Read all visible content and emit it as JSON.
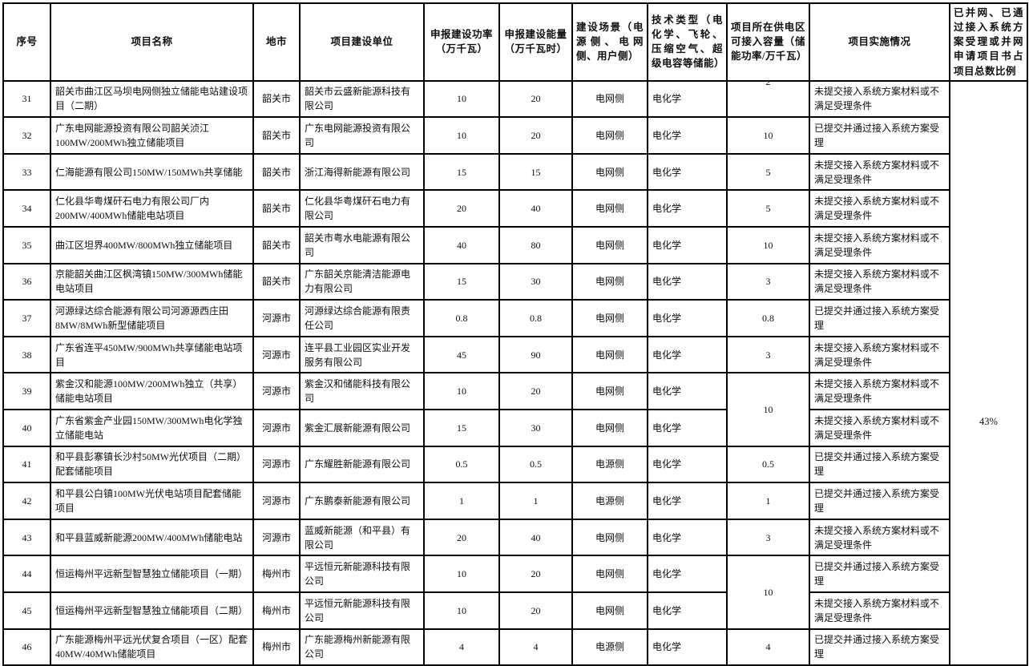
{
  "table": {
    "headers": [
      "序号",
      "项目名称",
      "地市",
      "项目建设单位",
      "申报建设功率（万千瓦）",
      "申报建设能量（万千瓦时）",
      "建设场景（电源侧、电网侧、用户侧）",
      "技术类型（电化学、飞轮、压缩空气、超级电容等储能）",
      "项目所在供电区可接入容量（储能功率/万千瓦）",
      "项目实施情况",
      "已并网、已通过接入系统方案受理或并网申请项目书占项目总数比例"
    ],
    "summary_ratio": "43%",
    "carryover_capacity_fragment": "2",
    "status_accepted": "已提交并通过接入系统方案受理",
    "status_not_submitted": "未提交接入系统方案材料或不满足受理条件",
    "rows": [
      {
        "no": "31",
        "name": "韶关市曲江区马坝电网侧独立储能电站建设项目（二期）",
        "city": "韶关市",
        "company": "韶关市云盛新能源科技有限公司",
        "power": "10",
        "energy": "20",
        "scenario": "电网侧",
        "tech": "电化学",
        "capacity": "",
        "capacity_partial": true,
        "status": "未提交接入系统方案材料或不满足受理条件"
      },
      {
        "no": "32",
        "name": "广东电网能源投资有限公司韶关浈江100MW/200MWh独立储能项目",
        "city": "韶关市",
        "company": "广东电网能源投资有限公司",
        "power": "10",
        "energy": "20",
        "scenario": "电网侧",
        "tech": "电化学",
        "capacity": "10",
        "status": "已提交并通过接入系统方案受理"
      },
      {
        "no": "33",
        "name": "仁海能源有限公司150MW/150MWh共享储能",
        "city": "韶关市",
        "company": "浙江海得新能源有限公司",
        "power": "15",
        "energy": "15",
        "scenario": "电网侧",
        "tech": "电化学",
        "capacity": "5",
        "status": "未提交接入系统方案材料或不满足受理条件"
      },
      {
        "no": "34",
        "name": "仁化县华粤煤矸石电力有限公司厂内200MW/400MWh储能电站项目",
        "city": "韶关市",
        "company": "仁化县华粤煤矸石电力有限公司",
        "power": "20",
        "energy": "40",
        "scenario": "电网侧",
        "tech": "电化学",
        "capacity": "5",
        "status": "未提交接入系统方案材料或不满足受理条件"
      },
      {
        "no": "35",
        "name": "曲江区坦界400MW/800MWh独立储能项目",
        "city": "韶关市",
        "company": "韶关市粤水电能源有限公司",
        "power": "40",
        "energy": "80",
        "scenario": "电网侧",
        "tech": "电化学",
        "capacity": "10",
        "status": "未提交接入系统方案材料或不满足受理条件"
      },
      {
        "no": "36",
        "name": "京能韶关曲江区枫湾镇150MW/300MWh储能电站项目",
        "city": "韶关市",
        "company": "广东韶关京能清洁能源电力有限公司",
        "power": "15",
        "energy": "30",
        "scenario": "电网侧",
        "tech": "电化学",
        "capacity": "3",
        "status": "未提交接入系统方案材料或不满足受理条件"
      },
      {
        "no": "37",
        "name": "河源绿达综合能源有限公司河源源西庄田8MW/8MWh新型储能项目",
        "city": "河源市",
        "company": "河源绿达综合能源有限责任公司",
        "power": "0.8",
        "energy": "0.8",
        "scenario": "电网侧",
        "tech": "电化学",
        "capacity": "0.8",
        "status": "已提交并通过接入系统方案受理"
      },
      {
        "no": "38",
        "name": "广东省连平450MW/900MWh共享储能电站项目",
        "city": "河源市",
        "company": "连平县工业园区实业开发服务有限公司",
        "power": "45",
        "energy": "90",
        "scenario": "电网侧",
        "tech": "电化学",
        "capacity": "3",
        "status": "未提交接入系统方案材料或不满足受理条件"
      },
      {
        "no": "39",
        "name": "紫金汉和能源100MW/200MWh独立（共享）储能电站项目",
        "city": "河源市",
        "company": "紫金汉和储能科技有限公司",
        "power": "10",
        "energy": "20",
        "scenario": "电网侧",
        "tech": "电化学",
        "capacity": "10",
        "capacity_rowspan": 2,
        "status": "未提交接入系统方案材料或不满足受理条件"
      },
      {
        "no": "40",
        "name": "广东省紫金产业园150MW/300MWh电化学独立储能电站",
        "city": "河源市",
        "company": "紫金汇展新能源有限公司",
        "power": "15",
        "energy": "30",
        "scenario": "电网侧",
        "tech": "电化学",
        "capacity_merged": true,
        "status": "未提交接入系统方案材料或不满足受理条件"
      },
      {
        "no": "41",
        "name": "和平县彭寨镇长沙村50MW光伏项目（二期）配套储能项目",
        "city": "河源市",
        "company": "广东耀胜新能源有限公司",
        "power": "0.5",
        "energy": "0.5",
        "scenario": "电源侧",
        "tech": "电化学",
        "capacity": "0.5",
        "status": "已提交并通过接入系统方案受理"
      },
      {
        "no": "42",
        "name": "和平县公白镇100MW光伏电站项目配套储能项目",
        "city": "河源市",
        "company": "广东鹏泰新能源有限公司",
        "power": "1",
        "energy": "1",
        "scenario": "电源侧",
        "tech": "电化学",
        "capacity": "1",
        "status": "已提交并通过接入系统方案受理"
      },
      {
        "no": "43",
        "name": "和平县蓝威新能源200MW/400MWh储能电站",
        "city": "河源市",
        "company": "蓝威新能源（和平县）有限公司",
        "power": "20",
        "energy": "40",
        "scenario": "电网侧",
        "tech": "电化学",
        "capacity": "3",
        "status": "未提交接入系统方案材料或不满足受理条件"
      },
      {
        "no": "44",
        "name": "恒运梅州平远新型智慧独立储能项目（一期）",
        "city": "梅州市",
        "company": "平远恒元新能源科技有限公司",
        "power": "10",
        "energy": "20",
        "scenario": "电网侧",
        "tech": "电化学",
        "capacity": "10",
        "capacity_rowspan": 2,
        "status": "已提交并通过接入系统方案受理"
      },
      {
        "no": "45",
        "name": "恒运梅州平远新型智慧独立储能项目（二期）",
        "city": "梅州市",
        "company": "平远恒元新能源科技有限公司",
        "power": "10",
        "energy": "20",
        "scenario": "电网侧",
        "tech": "电化学",
        "capacity_merged": true,
        "status": "未提交接入系统方案材料或不满足受理条件"
      },
      {
        "no": "46",
        "name": "广东能源梅州平远光伏复合项目（一区）配套40MW/40MWh储能项目",
        "city": "梅州市",
        "company": "广东能源梅州新能源有限公司",
        "power": "4",
        "energy": "4",
        "scenario": "电源侧",
        "tech": "电化学",
        "capacity": "4",
        "status": "已提交并通过接入系统方案受理"
      }
    ]
  }
}
